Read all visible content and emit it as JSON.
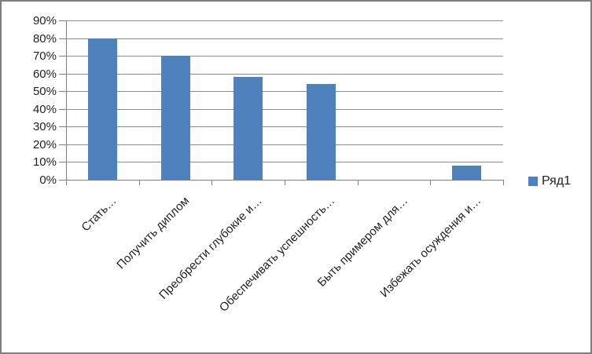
{
  "chart_data": {
    "type": "bar",
    "title": "",
    "xlabel": "",
    "ylabel": "",
    "categories": [
      "Стать…",
      "Получить диплом",
      "Преобрести глубокие и…",
      "Обеспечивать успешность…",
      "Быть примером для…",
      "Избежать осуждения и…"
    ],
    "values": [
      80,
      70,
      58,
      54,
      0,
      8
    ],
    "series": [
      {
        "name": "Ряд1",
        "values": [
          80,
          70,
          58,
          54,
          0,
          8
        ]
      }
    ],
    "ylim": [
      0,
      90
    ],
    "ytick_step": 10,
    "ytick_labels": [
      "0%",
      "10%",
      "20%",
      "30%",
      "40%",
      "50%",
      "60%",
      "70%",
      "80%",
      "90%"
    ],
    "grid": true,
    "legend_position": "right",
    "legend_entries": [
      "Ряд1"
    ]
  },
  "legend": {
    "series1_label": "Ряд1"
  },
  "colors": {
    "bar": "#4F81BD",
    "gridline": "#8c8c8c",
    "axis": "#808080",
    "frame": "#7f7f7f",
    "text": "#1f1f1f"
  }
}
